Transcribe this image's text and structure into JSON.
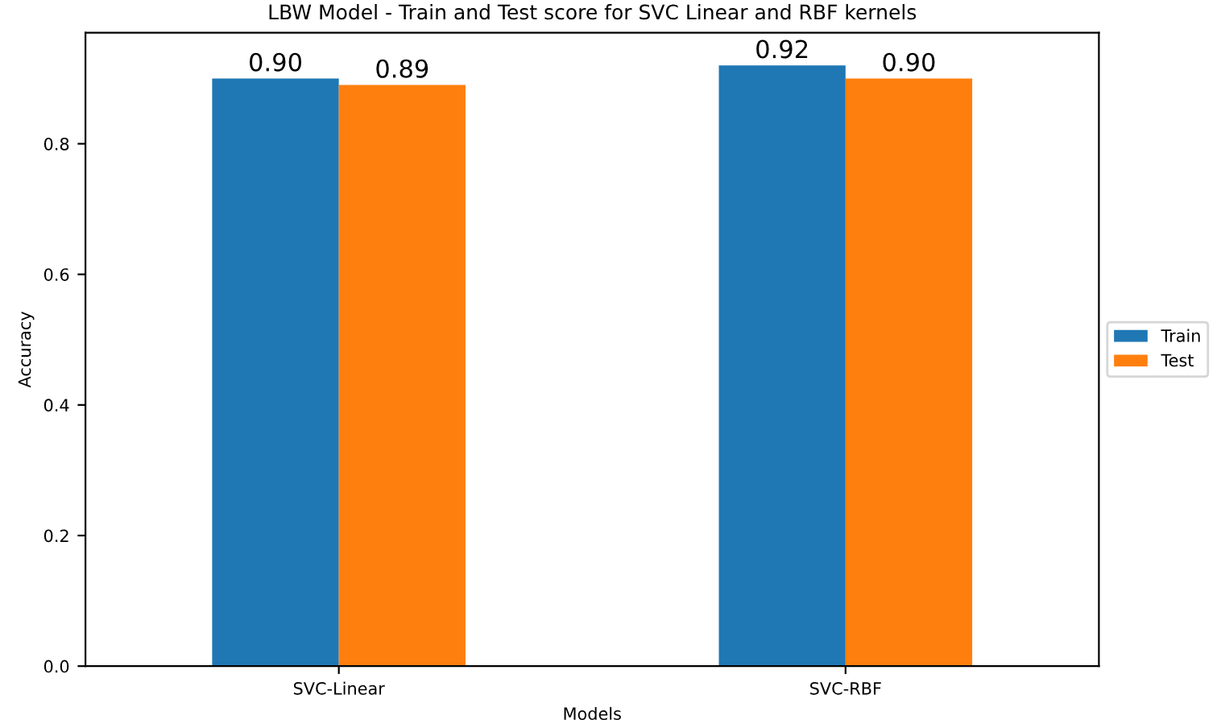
{
  "chart_data": {
    "type": "bar",
    "title": "LBW Model - Train and Test score for SVC Linear and RBF kernels",
    "xlabel": "Models",
    "ylabel": "Accuracy",
    "categories": [
      "SVC-Linear",
      "SVC-RBF"
    ],
    "series": [
      {
        "name": "Train",
        "color": "#1f77b4",
        "values": [
          0.9,
          0.92
        ],
        "value_labels": [
          "0.90",
          "0.92"
        ]
      },
      {
        "name": "Test",
        "color": "#ff7f0e",
        "values": [
          0.89,
          0.9
        ],
        "value_labels": [
          "0.89",
          "0.90"
        ]
      }
    ],
    "ylim": [
      0,
      0.97
    ],
    "yticks": [
      {
        "value": 0,
        "label": "0.0"
      },
      0.2,
      0.4,
      0.6,
      0.8
    ],
    "grid": false,
    "legend": "right"
  }
}
